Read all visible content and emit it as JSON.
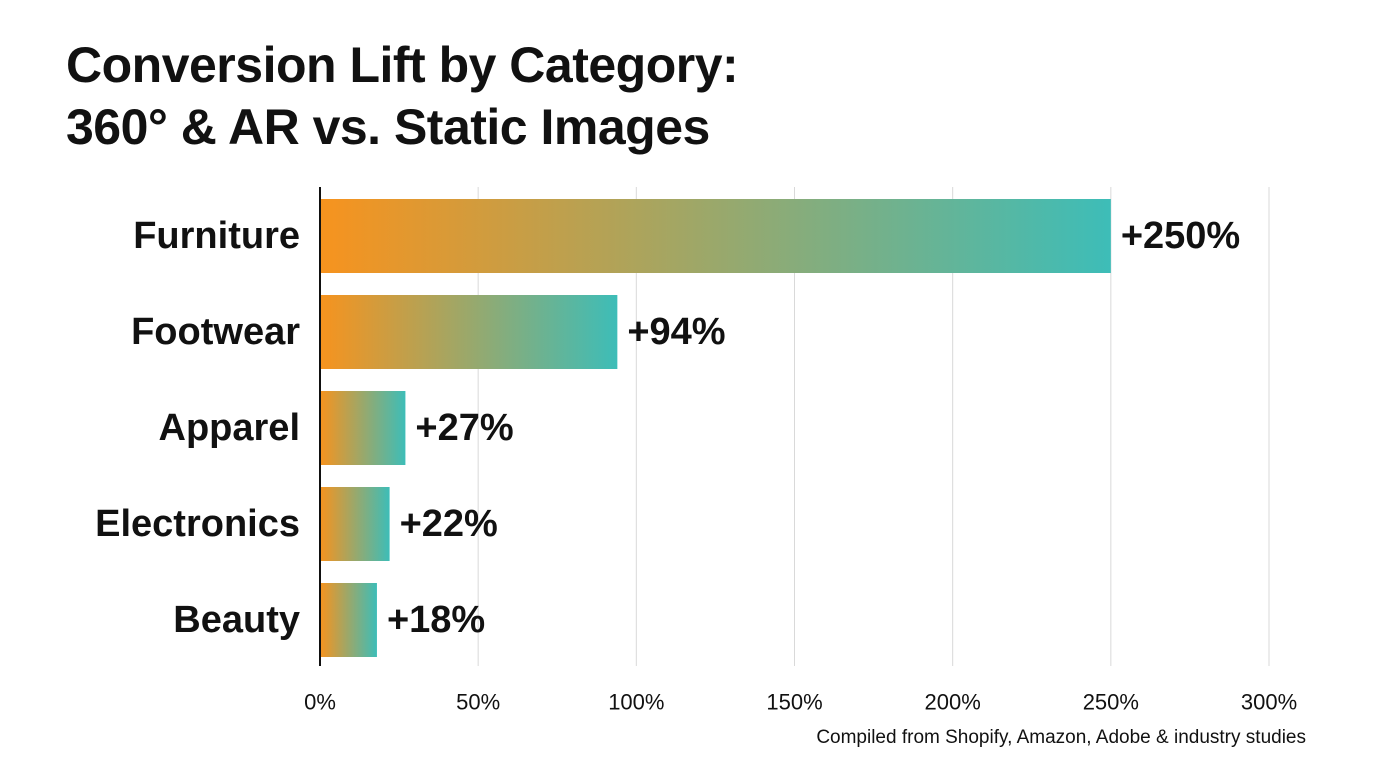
{
  "title": {
    "line1": "Conversion Lift by Category:",
    "line2": "360° & AR vs. Static Images"
  },
  "source": "Compiled from Shopify, Amazon, Adobe & industry studies",
  "colors": {
    "gradient_start": "#F7931E",
    "gradient_end": "#3DBDB8",
    "gridline": "#d9d9d9",
    "axis": "#111111"
  },
  "chart_data": {
    "type": "bar",
    "orientation": "horizontal",
    "categories": [
      "Furniture",
      "Footwear",
      "Apparel",
      "Electronics",
      "Beauty"
    ],
    "values": [
      250,
      94,
      27,
      22,
      18
    ],
    "value_labels": [
      "+250%",
      "+94%",
      "+27%",
      "+22%",
      "+18%"
    ],
    "xlim": [
      0,
      300
    ],
    "xticks": [
      0,
      50,
      100,
      150,
      200,
      250,
      300
    ],
    "xtick_labels": [
      "0%",
      "50%",
      "100%",
      "150%",
      "200%",
      "250%",
      "300%"
    ],
    "grid": "vertical",
    "legend": "none"
  }
}
